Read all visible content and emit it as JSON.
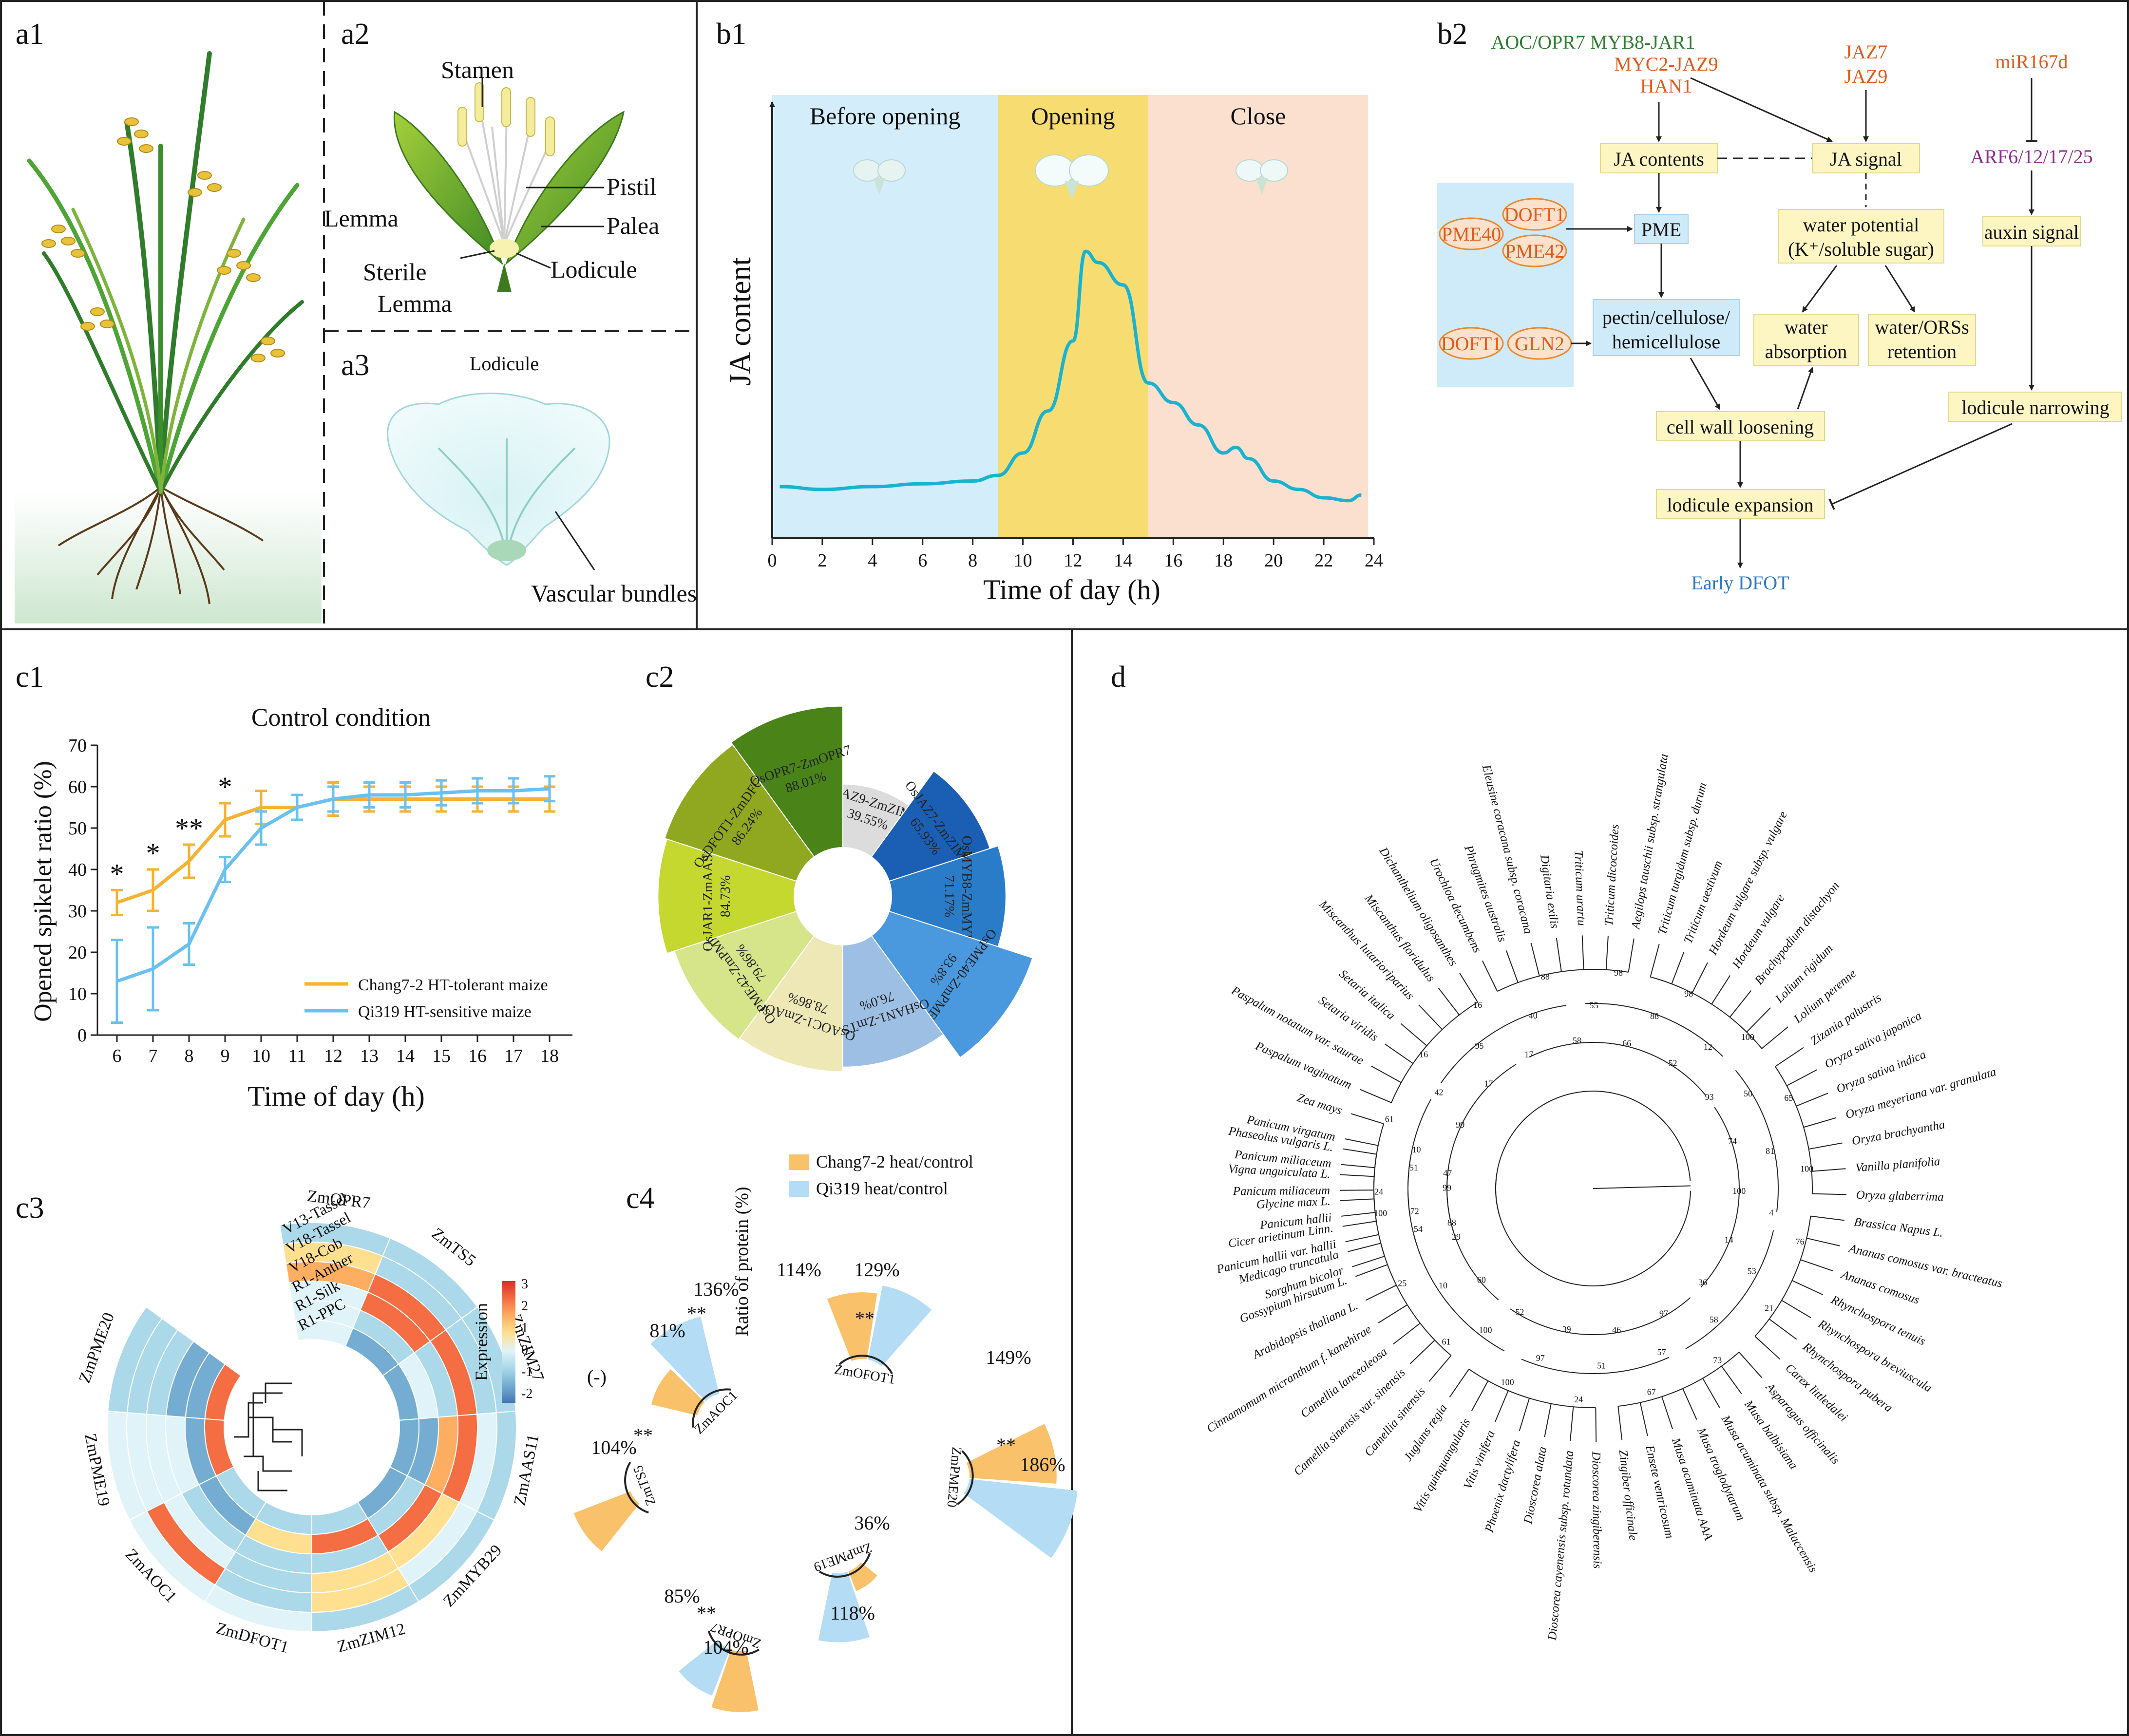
{
  "panels": {
    "a1": "a1",
    "a2": "a2",
    "a3": "a3",
    "b1": "b1",
    "b2": "b2",
    "c1": "c1",
    "c2": "c2",
    "c3": "c3",
    "c4": "c4",
    "d": "d"
  },
  "a2": {
    "stamen": "Stamen",
    "pistil": "Pistil",
    "lemma": "Lemma",
    "palea": "Palea",
    "sterile": "Sterile",
    "sterile_lemma": "Lemma",
    "lodicule": "Lodicule"
  },
  "a3": {
    "title": "Lodicule",
    "vascular": "Vascular bundles"
  },
  "b1": {
    "phases": [
      "Before opening",
      "Opening",
      "Close"
    ],
    "ylabel": "JA content",
    "xlabel": "Time of day (h)",
    "xticks": [
      "0",
      "2",
      "4",
      "6",
      "8",
      "10",
      "12",
      "14",
      "16",
      "18",
      "20",
      "22",
      "24"
    ],
    "phase_ranges_h": [
      [
        0,
        9
      ],
      [
        9,
        15
      ],
      [
        15,
        24
      ]
    ],
    "phase_colors": [
      "#d3eefa",
      "#f7dc72",
      "#fbe0cf"
    ],
    "line_color": "#1ab3cf",
    "chart_data": {
      "type": "line",
      "xlabel": "Time of day (h)",
      "ylabel": "JA content",
      "x": [
        0.3,
        2,
        4,
        6,
        8,
        9,
        10,
        11,
        12,
        12.5,
        13,
        14,
        15,
        16,
        17,
        18,
        18.5,
        19,
        20,
        21,
        22,
        23,
        23.5
      ],
      "y": [
        0.08,
        0.07,
        0.08,
        0.09,
        0.1,
        0.12,
        0.2,
        0.35,
        0.6,
        0.92,
        0.88,
        0.8,
        0.45,
        0.38,
        0.3,
        0.2,
        0.22,
        0.18,
        0.1,
        0.07,
        0.04,
        0.03,
        0.05
      ],
      "xlim": [
        0,
        24
      ],
      "ylim": [
        0,
        1
      ]
    }
  },
  "b2": {
    "top_green": "AOC/OPR7 MYB8-JAR1",
    "top_orange1": "MYC2-JAZ9",
    "top_orange2": "HAN1",
    "jaz7": "JAZ7",
    "jaz9": "JAZ9",
    "mir": "miR167d",
    "arf": "ARF6/12/17/25",
    "ja_contents": "JA contents",
    "ja_signal": "JA signal",
    "pme40": "PME40",
    "dooft1a": "DOFT1",
    "pme42": "PME42",
    "dooft1b": "DOFT1",
    "gln2": "GLN2",
    "pme": "PME",
    "water_potential": "water potential",
    "water_potential2": "(K⁺/soluble sugar)",
    "auxin": "auxin signal",
    "pectin1": "pectin/cellulose/",
    "pectin2": "hemicellulose",
    "water_abs1": "water",
    "water_abs2": "absorption",
    "water_ret1": "water/ORSs",
    "water_ret2": "retention",
    "lodicule_narrowing": "lodicule narrowing",
    "cell_wall": "cell wall loosening",
    "lodicule_exp": "lodicule expansion",
    "early": "Early DFOT",
    "colors": {
      "green": "#2e7d32",
      "orange": "#e05a1a",
      "purple": "#8e2b8e",
      "blue": "#2a79c2",
      "yellowbox": "#fdf6c3",
      "bluebox": "#cfeaf9"
    }
  },
  "c1": {
    "title": "Control condition",
    "ylabel": "Opened spikelet ratio (%)",
    "xlabel": "Time of day (h)",
    "legend": [
      "Chang7-2 HT-tolerant maize",
      "Qi319 HT-sensitive maize"
    ],
    "sig": [
      "*",
      "*",
      "**",
      "*"
    ],
    "chart_data": {
      "type": "line",
      "title": "Control condition",
      "xlabel": "Time of day (h)",
      "ylabel": "Opened spikelet ratio (%)",
      "x": [
        6,
        7,
        8,
        9,
        10,
        11,
        12,
        13,
        14,
        15,
        16,
        17,
        18
      ],
      "ylim": [
        0,
        70
      ],
      "yticks": [
        0,
        10,
        20,
        30,
        40,
        50,
        60,
        70
      ],
      "series": [
        {
          "name": "Chang7-2 HT-tolerant maize",
          "color": "#f5b233",
          "values": [
            32,
            35,
            42,
            52,
            55,
            55,
            57,
            57,
            57,
            57,
            57,
            57,
            57
          ],
          "err": [
            3,
            5,
            4,
            4,
            4,
            3,
            4,
            3,
            3,
            3,
            3,
            3,
            3
          ]
        },
        {
          "name": "Qi319 HT-sensitive maize",
          "color": "#6ac1ef",
          "values": [
            13,
            16,
            22,
            40,
            50,
            55,
            57,
            58,
            58,
            58.5,
            59,
            59,
            59.5
          ],
          "err": [
            10,
            10,
            5,
            3,
            4,
            3,
            3,
            3,
            3,
            3,
            3,
            3,
            3
          ]
        }
      ]
    }
  },
  "c2": {
    "chart_data": {
      "type": "pie",
      "labels": [
        "OsJAZ9-ZmZIM27",
        "OsJAZ7-ZmZIM12",
        "OsMYB8-ZmMYB29",
        "OsPME40-ZmPME20",
        "OsHAN1-ZmTS5",
        "OsAOC1-ZmAOC1",
        "OsPME42-ZmPME19",
        "OsJAR1-ZmAAS11",
        "OsDFOT1-ZmDFOT1",
        "OsOPR7-ZmOPR7"
      ],
      "values": [
        39.55,
        65.93,
        71.17,
        93.8,
        76.0,
        78.86,
        79.86,
        84.73,
        86.24,
        88.01
      ],
      "value_labels": [
        "39.55%",
        "65.93%",
        "71.17%",
        "93.8%",
        "76.0%",
        "78.86%",
        "79.86%",
        "84.73%",
        "86.24%",
        "88.01%"
      ],
      "colors": [
        "#dcdcdc",
        "#1a5fb4",
        "#2a7cc8",
        "#4a98de",
        "#9dbfe3",
        "#ede8b5",
        "#d6e58a",
        "#c4d82f",
        "#8fa81f",
        "#4a8419"
      ]
    }
  },
  "c3": {
    "genes": [
      "ZmOPR7",
      "ZmTS5",
      "ZmZIM27",
      "ZmAAS11",
      "ZmMYB29",
      "ZmZIM12",
      "ZmDFOT1",
      "ZmAOC1",
      "ZmPME19",
      "ZmPME20"
    ],
    "rings": [
      "V13-Tassel",
      "V18-Tassel",
      "V18-Cob",
      "R1-Anther",
      "R1-Silk",
      "R1-PPC"
    ],
    "legend_title": "Expression",
    "legend_ticks": [
      "3",
      "2",
      "1",
      "0",
      "-1",
      "-2"
    ],
    "colors": [
      "#d73027",
      "#f46d43",
      "#fdae61",
      "#fee090",
      "#e0f3f8",
      "#abd9e9",
      "#74add1",
      "#4575b4"
    ],
    "matrix": [
      [
        -0.3,
        0.8,
        1.5,
        0.2,
        0.0,
        0.2
      ],
      [
        -0.3,
        -0.3,
        2.6,
        2.0,
        -0.5,
        -1.2
      ],
      [
        -0.4,
        -0.5,
        2.6,
        -0.8,
        0.1,
        -1.5
      ],
      [
        -0.4,
        0.5,
        2.6,
        1.8,
        -1.0,
        -1.4
      ],
      [
        -0.3,
        0.4,
        1.2,
        2.0,
        -0.8,
        -1.0
      ],
      [
        -0.3,
        1.0,
        0.6,
        -0.5,
        2.0,
        -0.5
      ],
      [
        -0.2,
        -0.4,
        -0.3,
        -0.6,
        1.2,
        -0.8
      ],
      [
        0.2,
        2.5,
        0.4,
        -0.8,
        -1.2,
        -0.6
      ],
      [
        0.1,
        0.0,
        -0.1,
        0.5,
        -1.0,
        2.2
      ],
      [
        -0.3,
        -0.4,
        -0.5,
        -1.3,
        -1.0,
        2.0
      ]
    ]
  },
  "c4": {
    "legend": [
      "Chang7-2 heat/control",
      "Qi319 heat/control"
    ],
    "ylabel": "Ratio of protein (%)",
    "groups": [
      {
        "name": "ZmAOC1",
        "orange": "81%",
        "blue": "136%",
        "sig": "**"
      },
      {
        "name": "ZmOFOT1",
        "orange": "114%",
        "blue": "129%",
        "sig": "**"
      },
      {
        "name": "ZmPME20",
        "orange": "149%",
        "blue": "186%",
        "sig": "**"
      },
      {
        "name": "ZmPME19",
        "orange": "36%",
        "blue": "118%",
        "sig": ""
      },
      {
        "name": "ZmOPR7",
        "orange": "104%",
        "blue": "85%",
        "sig": "**"
      },
      {
        "name": "ZmTS5",
        "orange": "104%",
        "blue": "(-)",
        "sig": "**"
      }
    ],
    "chart_data": {
      "type": "bar",
      "categories": [
        "ZmAOC1",
        "ZmOFOT1",
        "ZmPME20",
        "ZmPME19",
        "ZmOPR7",
        "ZmTS5"
      ],
      "ylabel": "Ratio of protein (%)",
      "series": [
        {
          "name": "Chang7-2 heat/control",
          "color": "#f8c16a",
          "values": [
            81,
            114,
            149,
            36,
            104,
            104
          ]
        },
        {
          "name": "Qi319 heat/control",
          "color": "#b4dcf5",
          "values": [
            136,
            129,
            186,
            118,
            85,
            null
          ]
        }
      ]
    }
  },
  "d": {
    "tips": [
      "Sorghum bicolor",
      "Panicum hallii var. hallii",
      "Panicum hallii",
      "Panicum miliaceum",
      "Panicum miliaceum",
      "Panicum virgatum",
      "Zea mays",
      "Paspalum vaginatum",
      "Paspalum notatum var. saurae",
      "Setaria viridis",
      "Setaria italica",
      "Miscanthus lutarioriparius",
      "Miscanthus floridulus",
      "Dichanthelium oligosanthes",
      "Urochloa decumbens",
      "Phragmites australis",
      "Eleusine coracana subsp. coracana",
      "Digitaria exilis",
      "Triticum urartu",
      "Triticum dicoccoides",
      "Aegilops tauschii subsp. strangulata",
      "Triticum turgidum subsp. durum",
      "Triticum aestivum",
      "Hordeum vulgare subsp. vulgare",
      "Hordeum vulgare",
      "Brachypodium distachyon",
      "Lolium rigidum",
      "Lolium perenne",
      "Zizania palustris",
      "Oryza sativa japonica",
      "Oryza sativa indica",
      "Oryza meyeriana var. granulata",
      "Oryza brachyantha",
      "Vanilla planifolia",
      "Oryza glaberrima",
      "Brassica Napus L.",
      "Ananas comosus var. bracteatus",
      "Ananas comosus",
      "Rhynchospora tenuis",
      "Rhynchospora breviuscula",
      "Rhynchospora pubera",
      "Carex littledalei",
      "Asparagus officinalis",
      "Musa balbisiana",
      "Musa acuminata subsp. Malaccensis",
      "Musa troglodytarum",
      "Musa acuminata AAA",
      "Ensete ventricosum",
      "Zingiber officinale",
      "Dioscorea zingiberensis",
      "Dioscorea cayenensis subsp. rotundata",
      "Dioscorea alata",
      "Phoenix dactylifera",
      "Vitis vinifera",
      "Vitis quinquangularis",
      "Juglans regia",
      "Camellia sinensis",
      "Camellia sinensis var. sinensis",
      "Camellia lanceoleosa",
      "Cinnamomum micranthum f. kanehirae",
      "Arabidopsis thaliana L.",
      "Gossypium hirsutum L.",
      "Medicago truncatula",
      "Cicer arietinum Linn.",
      "Glycine max L.",
      "Vigna unguiculata L.",
      "Phaseolus vulgaris L."
    ],
    "bootstrap": [
      "88",
      "72",
      "24",
      "47",
      "10",
      "61",
      "99",
      "42",
      "16",
      "17",
      "95",
      "16",
      "17",
      "40",
      "88",
      "58",
      "55",
      "98",
      "66",
      "88",
      "98",
      "52",
      "12",
      "100",
      "93",
      "50",
      "65",
      "74",
      "81",
      "100",
      "100",
      "4",
      "76",
      "14",
      "53",
      "21",
      "36",
      "58",
      "73",
      "97",
      "57",
      "67",
      "46",
      "51",
      "24",
      "39",
      "97",
      "100",
      "52",
      "100",
      "61",
      "60",
      "10",
      "25",
      "29",
      "54",
      "100",
      "99",
      "51"
    ]
  }
}
